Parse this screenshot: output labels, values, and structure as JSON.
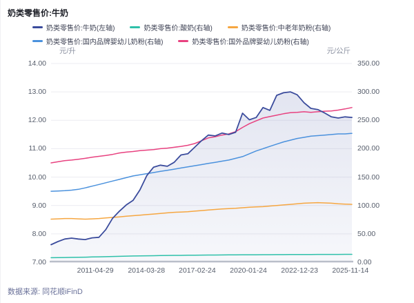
{
  "header": {
    "title": "奶类零售价:牛奶"
  },
  "footer": {
    "source": "数据来源: 同花顺iFinD"
  },
  "axes": {
    "left": {
      "unit": "元/升",
      "ticks": [
        "14.00",
        "13.00",
        "12.00",
        "11.00",
        "10.00",
        "9.00",
        "8.00",
        "7.00"
      ]
    },
    "right": {
      "unit": "元/公斤",
      "ticks": [
        "350.00",
        "300.00",
        "250.00",
        "200.00",
        "150.00",
        "100.00",
        "50.00",
        "0.00"
      ]
    },
    "x": {
      "ticks": [
        "2011-04-29",
        "2014-03-28",
        "2017-02-24",
        "2020-01-24",
        "2022-12-23",
        "2025-11-14"
      ],
      "positions": [
        0.147,
        0.317,
        0.486,
        0.656,
        0.826,
        0.995
      ]
    }
  },
  "legend": {
    "rows": [
      [
        0,
        1,
        2
      ],
      [
        3,
        4
      ]
    ]
  },
  "chart_data": {
    "type": "line",
    "title": "奶类零售价:牛奶",
    "left_axis": {
      "label": "元/升",
      "range": [
        7,
        14
      ]
    },
    "right_axis": {
      "label": "元/公斤",
      "range": [
        0,
        350
      ]
    },
    "x_tick_labels": [
      "2011-04-29",
      "2014-03-28",
      "2017-02-24",
      "2020-01-24",
      "2022-12-23",
      "2025-11-14"
    ],
    "grid": "horizontal",
    "legend_position": "top",
    "colors": {
      "milk": "#3a4b9c",
      "yogurt": "#2ec0a9",
      "senior_powder": "#f6a640",
      "domestic_infant": "#4a91dd",
      "foreign_infant": "#e8417f",
      "grid_line": "#ececf1",
      "axis_line": "#b9bec9",
      "area_fill": "#5867ac"
    },
    "series": [
      {
        "name": "奶类零售价:牛奶(左轴)",
        "key": "milk",
        "axis": "left",
        "color": "#3a4b9c",
        "width": 1.8,
        "area_fill": true,
        "values": [
          7.62,
          7.73,
          7.82,
          7.85,
          7.82,
          7.8,
          7.86,
          7.88,
          8.15,
          8.55,
          8.8,
          9.02,
          9.18,
          9.55,
          10.05,
          10.35,
          10.42,
          10.38,
          10.52,
          10.78,
          10.82,
          11.05,
          11.28,
          11.48,
          11.45,
          11.55,
          11.5,
          11.58,
          12.25,
          12.02,
          12.1,
          12.45,
          12.35,
          12.88,
          12.97,
          13.0,
          12.9,
          12.62,
          12.42,
          12.38,
          12.26,
          12.12,
          12.08,
          12.12,
          12.1
        ]
      },
      {
        "name": "奶类零售价:酸奶(右轴)",
        "key": "yogurt",
        "axis": "right",
        "color": "#2ec0a9",
        "width": 1.5,
        "area_fill": false,
        "values": [
          8,
          8.2,
          8.4,
          8.6,
          8.8,
          9,
          9.3,
          9.6,
          9.9,
          10.2,
          10.5,
          10.8,
          11,
          11.2,
          11.4,
          11.6,
          11.8,
          12,
          12.1,
          12.2,
          12.4,
          12.5,
          12.6,
          12.7,
          12.8,
          12.9,
          13,
          13.1,
          13.2,
          13.3,
          13.3,
          13.4,
          13.4,
          13.5,
          13.5,
          13.6,
          13.6,
          13.7,
          13.7,
          13.8,
          13.8,
          13.9,
          13.9,
          14,
          14
        ]
      },
      {
        "name": "奶类零售价:中老年奶粉(右轴)",
        "key": "senior_powder",
        "axis": "right",
        "color": "#f6a640",
        "width": 1.5,
        "area_fill": false,
        "values": [
          76,
          76.5,
          77,
          77,
          76.5,
          76,
          76.5,
          77,
          78,
          79,
          80,
          81,
          82,
          83,
          84,
          85,
          86,
          87,
          88,
          88.5,
          89,
          90,
          91,
          92,
          93,
          94,
          94.5,
          95,
          96,
          97,
          97.5,
          98,
          99,
          100,
          101,
          102,
          103,
          104,
          104.5,
          105,
          104.5,
          104,
          103,
          102.5,
          102
        ]
      },
      {
        "name": "奶类零售价:国内品牌婴幼儿奶粉(右轴)",
        "key": "domestic_infant",
        "axis": "right",
        "color": "#4a91dd",
        "width": 1.5,
        "area_fill": false,
        "values": [
          125,
          125.5,
          126,
          127,
          128.5,
          131,
          134,
          137,
          140,
          143,
          146,
          149,
          152,
          154,
          156,
          158,
          160,
          162,
          164,
          166,
          168,
          170,
          172,
          174,
          176,
          178,
          180,
          183,
          186,
          191,
          196,
          200,
          204,
          208,
          212,
          215,
          218,
          220,
          222,
          223,
          224,
          225,
          226,
          226,
          227
        ]
      },
      {
        "name": "奶类零售价:国外品牌婴幼儿奶粉(右轴)",
        "key": "foreign_infant",
        "axis": "right",
        "color": "#e8417f",
        "width": 1.5,
        "area_fill": false,
        "values": [
          175,
          177,
          179,
          180,
          181.5,
          183,
          185,
          186.5,
          188,
          190,
          192.5,
          194,
          195,
          196.5,
          197.5,
          198.5,
          200,
          201,
          202.5,
          204,
          206,
          209,
          214,
          219,
          221,
          224,
          226,
          230,
          237.5,
          244,
          249,
          254,
          256.5,
          259,
          261.5,
          263.5,
          264,
          265,
          264,
          265,
          266,
          266.5,
          268,
          270,
          272.5
        ]
      }
    ]
  }
}
